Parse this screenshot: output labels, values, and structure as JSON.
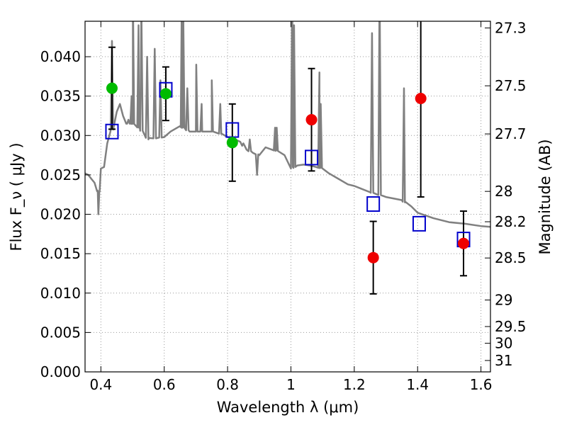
{
  "chart_data": {
    "type": "scatter",
    "xlabel": "Wavelength  λ (μm)",
    "ylabel": "Flux  F_ν  ( μJy )",
    "y2label": "Magnitude (AB)",
    "xlim": [
      0.35,
      1.63
    ],
    "ylim": [
      0.0,
      0.0445
    ],
    "grid": true,
    "grid_style": "dotted",
    "x_ticks": [
      0.4,
      0.6,
      0.8,
      1.0,
      1.2,
      1.4,
      1.6
    ],
    "x_tick_labels": [
      "0.4",
      "0.6",
      "0.8",
      "1",
      "1.2",
      "1.4",
      "1.6"
    ],
    "y_ticks": [
      0.0,
      0.005,
      0.01,
      0.015,
      0.02,
      0.025,
      0.03,
      0.035,
      0.04
    ],
    "y_tick_labels": [
      "0.000",
      "0.005",
      "0.010",
      "0.015",
      "0.020",
      "0.025",
      "0.030",
      "0.035",
      "0.040"
    ],
    "y2_tick_labels": [
      "27.3",
      "27.5",
      "27.7",
      "28",
      "28.2",
      "28.5",
      "29",
      "29.5",
      "30",
      "31"
    ],
    "colors": {
      "model_line": "#808080",
      "green_points": "#00bb00",
      "red_points": "#ee0000",
      "open_squares": "#0000cc",
      "error_bars": "#000000",
      "grid": "#999999"
    },
    "series": [
      {
        "marker": "line",
        "x": [
          0.35,
          0.36,
          0.37,
          0.38,
          0.39,
          0.395,
          0.4,
          0.41,
          0.42,
          0.43,
          0.44,
          0.45,
          0.46,
          0.47,
          0.48,
          0.5,
          0.52,
          0.55,
          0.58,
          0.6,
          0.62,
          0.65,
          0.68,
          0.7,
          0.72,
          0.75,
          0.78,
          0.8,
          0.82,
          0.84,
          0.86,
          0.88,
          0.9,
          0.92,
          0.94,
          0.96,
          0.98,
          1.0,
          1.02,
          1.04,
          1.06,
          1.08,
          1.1,
          1.12,
          1.15,
          1.18,
          1.2,
          1.25,
          1.3,
          1.35,
          1.36,
          1.38,
          1.4,
          1.45,
          1.5,
          1.55,
          1.6,
          1.63
        ],
        "y": [
          0.0252,
          0.025,
          0.0245,
          0.024,
          0.023,
          0.0228,
          0.0258,
          0.026,
          0.029,
          0.0305,
          0.031,
          0.033,
          0.034,
          0.0325,
          0.0315,
          0.0315,
          0.031,
          0.0295,
          0.0297,
          0.0298,
          0.0305,
          0.0312,
          0.0305,
          0.0305,
          0.0305,
          0.0305,
          0.0302,
          0.0298,
          0.0296,
          0.0292,
          0.0282,
          0.0278,
          0.0275,
          0.0285,
          0.0282,
          0.028,
          0.0275,
          0.0258,
          0.0262,
          0.0263,
          0.0262,
          0.026,
          0.0258,
          0.0252,
          0.0245,
          0.0238,
          0.0236,
          0.0228,
          0.0222,
          0.0218,
          0.0215,
          0.021,
          0.0202,
          0.0195,
          0.019,
          0.0188,
          0.0185,
          0.0184
        ]
      },
      {
        "marker": "filled-circle-green",
        "x": [
          0.435,
          0.605,
          0.815
        ],
        "y": [
          0.036,
          0.0353,
          0.0291
        ],
        "yerr": [
          0.0052,
          0.0034,
          0.0049
        ]
      },
      {
        "marker": "filled-circle-red",
        "x": [
          1.065,
          1.26,
          1.41,
          1.545
        ],
        "y": [
          0.032,
          0.0145,
          0.0347,
          0.0163
        ],
        "yerr": [
          0.0065,
          0.0046,
          0.0125,
          0.0041
        ]
      },
      {
        "marker": "open-square-blue",
        "x": [
          0.435,
          0.605,
          0.815,
          1.065,
          1.26,
          1.405,
          1.545
        ],
        "y": [
          0.0305,
          0.0358,
          0.0307,
          0.0272,
          0.0213,
          0.0188,
          0.0168
        ]
      }
    ]
  }
}
